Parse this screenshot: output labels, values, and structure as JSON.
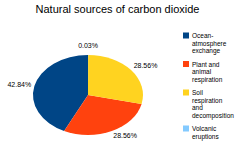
{
  "chart_data": {
    "type": "pie",
    "title": "Natural sources of carbon dioxide",
    "categories": [
      "Ocean-atmosphere exchange",
      "Plant and animal respiration",
      "Soil respiration and decomposition",
      "Volcanic eruptions"
    ],
    "values": [
      42.84,
      28.56,
      28.56,
      0.03
    ],
    "value_labels": [
      "42.84%",
      "28.56%",
      "28.56%",
      "0.03%"
    ],
    "colors": [
      "#004586",
      "#ff420e",
      "#ffd320",
      "#83caff"
    ],
    "data_labels": true,
    "legend": "right"
  }
}
